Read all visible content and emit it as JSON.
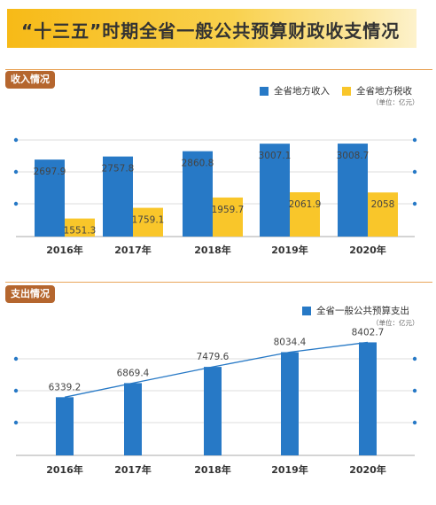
{
  "title": "“十三五”时期全省一般公共预算财政收支情况",
  "colors": {
    "blue": "#2779c6",
    "yellow": "#f9c62a",
    "badge": "#b5662e",
    "grid": "#dcdcdc",
    "text": "#444444"
  },
  "income": {
    "badge": "收入情况",
    "unit": "（单位：亿元）",
    "chart_data": {
      "type": "bar",
      "categories": [
        "2016年",
        "2017年",
        "2018年",
        "2019年",
        "2020年"
      ],
      "series": [
        {
          "name": "全省地方收入",
          "values": [
            2697.9,
            2757.8,
            2860.8,
            3007.1,
            3008.7
          ]
        },
        {
          "name": "全省地方税收",
          "values": [
            1551.3,
            1759.1,
            1959.7,
            2061.9,
            2058
          ]
        }
      ],
      "legend": "top-right",
      "grid": true
    }
  },
  "expense": {
    "badge": "支出情况",
    "unit": "（单位：亿元）",
    "chart_data": {
      "type": "bar",
      "categories": [
        "2016年",
        "2017年",
        "2018年",
        "2019年",
        "2020年"
      ],
      "series": [
        {
          "name": "全省一般公共预算支出",
          "values": [
            6339.2,
            6869.4,
            7479.6,
            8034.4,
            8402.7
          ]
        }
      ],
      "overlay": "line connecting bar tops",
      "legend": "top-right",
      "grid": true
    }
  }
}
